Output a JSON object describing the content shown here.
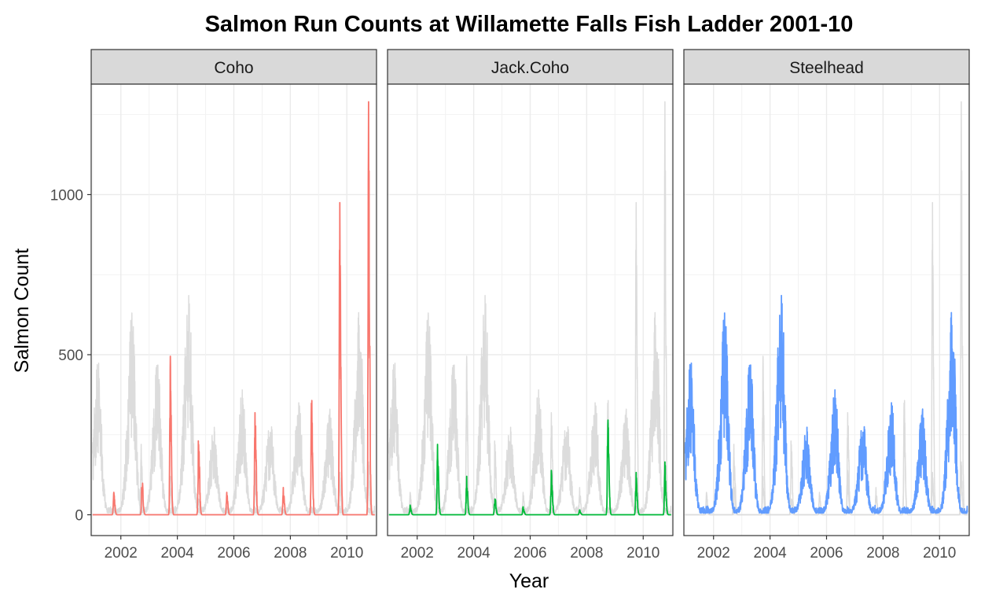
{
  "chart_data": {
    "type": "line",
    "title": "Salmon Run Counts at Willamette Falls Fish Ladder 2001-10",
    "xlabel": "Year",
    "ylabel": "Salmon Count",
    "xlim": [
      2000.95,
      2011.05
    ],
    "ylim": [
      -65,
      1345
    ],
    "x_ticks": [
      2002,
      2004,
      2006,
      2008,
      2010
    ],
    "x_tick_labels": [
      "2002",
      "2004",
      "2006",
      "2008",
      "2010"
    ],
    "y_ticks": [
      0,
      500,
      1000
    ],
    "y_tick_labels": [
      "0",
      "500",
      "1000"
    ],
    "grid": true,
    "legend": "none",
    "background_series_color": "#dcdcdc",
    "panels": [
      {
        "name": "Coho",
        "color": "#f8766d",
        "peaks": [
          [
            2001.75,
            70
          ],
          [
            2002.75,
            120
          ],
          [
            2003.75,
            495
          ],
          [
            2004.75,
            258
          ],
          [
            2005.75,
            70
          ],
          [
            2006.75,
            385
          ],
          [
            2007.75,
            85
          ],
          [
            2008.75,
            415
          ],
          [
            2009.75,
            975
          ],
          [
            2010.77,
            1290
          ]
        ]
      },
      {
        "name": "Jack.Coho",
        "color": "#00ba38",
        "peaks": [
          [
            2001.75,
            30
          ],
          [
            2002.72,
            220
          ],
          [
            2003.75,
            120
          ],
          [
            2004.75,
            58
          ],
          [
            2005.75,
            25
          ],
          [
            2006.75,
            148
          ],
          [
            2007.75,
            15
          ],
          [
            2008.75,
            382
          ],
          [
            2009.75,
            132
          ],
          [
            2010.77,
            165
          ]
        ]
      },
      {
        "name": "Steelhead",
        "color": "#619cff",
        "peaks": [
          [
            2001.2,
            495
          ],
          [
            2002.4,
            645
          ],
          [
            2003.3,
            490
          ],
          [
            2004.4,
            710
          ],
          [
            2005.3,
            280
          ],
          [
            2006.3,
            390
          ],
          [
            2007.3,
            310
          ],
          [
            2008.3,
            350
          ],
          [
            2009.4,
            330
          ],
          [
            2010.45,
            650
          ]
        ]
      }
    ]
  }
}
